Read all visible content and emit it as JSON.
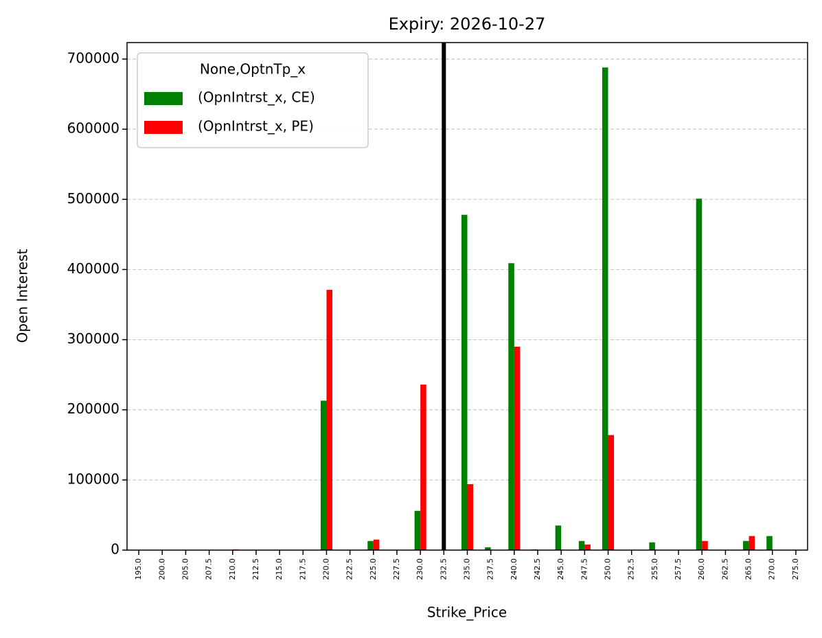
{
  "chart_data": {
    "type": "bar",
    "title": "Expiry: 2026-10-27",
    "x_label": "Strike_Price",
    "y_label": "Open Interest",
    "legend_title": "None,OptnTp_x",
    "legend_position": "upper left",
    "categories": [
      "195.0",
      "200.0",
      "205.0",
      "207.5",
      "210.0",
      "212.5",
      "215.0",
      "217.5",
      "220.0",
      "222.5",
      "225.0",
      "227.5",
      "230.0",
      "232.5",
      "235.0",
      "237.5",
      "240.0",
      "242.5",
      "245.0",
      "247.5",
      "250.0",
      "252.5",
      "255.0",
      "257.5",
      "260.0",
      "262.5",
      "265.0",
      "270.0",
      "275.0"
    ],
    "series": [
      {
        "name": "(OpnIntrst_x, CE)",
        "color": "#008000",
        "values": [
          0,
          0,
          0,
          0,
          0,
          0,
          0,
          0,
          213000,
          0,
          13000,
          0,
          56000,
          0,
          478000,
          4000,
          409000,
          1000,
          35000,
          13000,
          688000,
          0,
          11000,
          0,
          501000,
          0,
          13000,
          20000,
          0
        ]
      },
      {
        "name": "(OpnIntrst_x, PE)",
        "color": "#ff0000",
        "values": [
          0,
          0,
          0,
          0,
          1000,
          0,
          0,
          0,
          371000,
          0,
          15000,
          0,
          236000,
          0,
          94000,
          0,
          290000,
          0,
          0,
          8000,
          164000,
          0,
          0,
          0,
          13000,
          0,
          20000,
          0,
          0
        ]
      }
    ],
    "vline_category": "232.5",
    "vline_color": "#000000",
    "ylim": [
      0,
      723500
    ],
    "yticks": [
      0,
      100000,
      200000,
      300000,
      400000,
      500000,
      600000,
      700000
    ],
    "grid": true
  }
}
